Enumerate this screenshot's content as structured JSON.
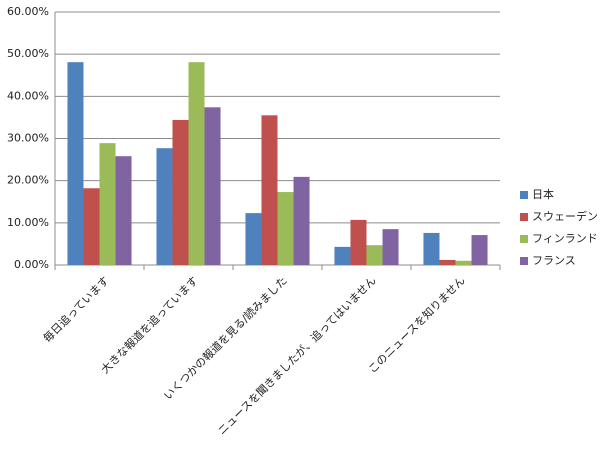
{
  "chart_data": {
    "type": "bar",
    "categories": [
      "毎日追っています",
      "大きな報道を追っています",
      "いくつかの報道を見る/読みました",
      "ニュースを聞きましたが、追ってはいません",
      "このニュースを知りません"
    ],
    "series": [
      {
        "name": "日本",
        "color": "#4f81bd",
        "values": [
          48.1,
          27.7,
          12.3,
          4.3,
          7.6
        ]
      },
      {
        "name": "スウェーデン",
        "color": "#c0504d",
        "values": [
          18.2,
          34.4,
          35.5,
          10.7,
          1.2
        ]
      },
      {
        "name": "フィンランド",
        "color": "#9bbb59",
        "values": [
          28.9,
          48.1,
          17.3,
          4.7,
          1.0
        ]
      },
      {
        "name": "フランス",
        "color": "#8064a2",
        "values": [
          25.8,
          37.4,
          20.9,
          8.5,
          7.1
        ]
      }
    ],
    "ylim": [
      0,
      60
    ],
    "yticks": [
      {
        "value": 0,
        "label": "0.00%"
      },
      {
        "value": 10,
        "label": "10.00%"
      },
      {
        "value": 20,
        "label": "20.00%"
      },
      {
        "value": 30,
        "label": "30.00%"
      },
      {
        "value": 40,
        "label": "40.00%"
      },
      {
        "value": 50,
        "label": "50.00%"
      },
      {
        "value": 60,
        "label": "60.00%"
      }
    ],
    "grid": true,
    "legend": "right"
  }
}
